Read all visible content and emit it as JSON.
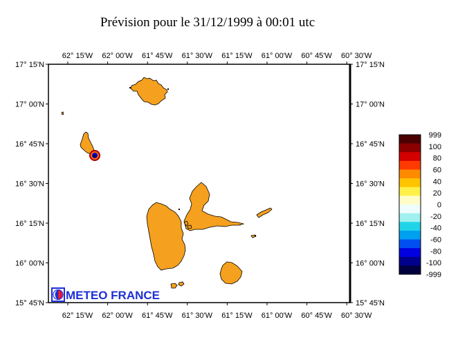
{
  "title": "Prévision pour le 31/12/1999 à 00:01 utc",
  "longitude_labels": [
    "62° 15'W",
    "62° 00'W",
    "61° 45'W",
    "61° 30'W",
    "61° 15'W",
    "61° 00'W",
    "60° 45'W",
    "60° 30'W"
  ],
  "latitude_labels": [
    "17° 15'N",
    "17° 00'N",
    "16° 45'N",
    "16° 30'N",
    "16° 15'N",
    "16° 00'N",
    "15° 45'N"
  ],
  "colorbar": {
    "labels": [
      "999",
      "100",
      "80",
      "60",
      "40",
      "20",
      "0",
      "-20",
      "-40",
      "-60",
      "-80",
      "-100",
      "-999"
    ],
    "colors": [
      "#4a0000",
      "#8c0000",
      "#d40000",
      "#ff3a00",
      "#ff8c00",
      "#ffc400",
      "#fff04a",
      "#fffcc8",
      "#eefcfc",
      "#a0f0f0",
      "#20d4e8",
      "#00a0f0",
      "#0050f0",
      "#0000e0",
      "#00008c",
      "#000040"
    ]
  },
  "islands_color": "#f5a01e",
  "logo": "METEO FRANCE"
}
